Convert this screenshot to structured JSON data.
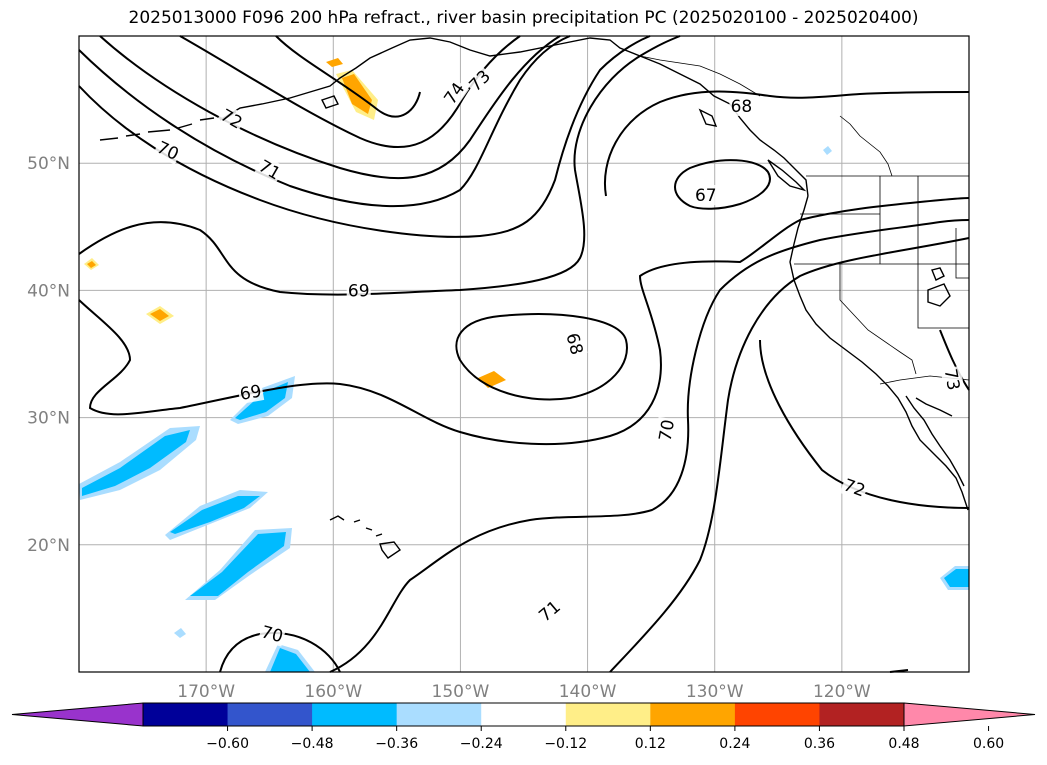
{
  "title": "2025013000 F096 200 hPa refract., river basin precipitation PC (2025020100 - 2025020400)",
  "map": {
    "projection": "plate-carree",
    "lon_range": [
      -180,
      -110
    ],
    "lat_range": [
      10,
      60
    ],
    "lat_ticks": [
      {
        "value": 20,
        "label": "20°N"
      },
      {
        "value": 30,
        "label": "30°N"
      },
      {
        "value": 40,
        "label": "40°N"
      },
      {
        "value": 50,
        "label": "50°N"
      }
    ],
    "lon_ticks": [
      {
        "value": -170,
        "label": "170°W"
      },
      {
        "value": -160,
        "label": "160°W"
      },
      {
        "value": -150,
        "label": "150°W"
      },
      {
        "value": -140,
        "label": "140°W"
      },
      {
        "value": -130,
        "label": "130°W"
      },
      {
        "value": -120,
        "label": "120°W"
      }
    ],
    "grid": true,
    "contour_labels": [
      {
        "text": "74",
        "lon": -150.5,
        "lat": 55.5,
        "angle": -55
      },
      {
        "text": "73",
        "lon": -148.5,
        "lat": 56.5,
        "angle": -45
      },
      {
        "text": "72",
        "lon": -168.0,
        "lat": 53.5,
        "angle": 30
      },
      {
        "text": "71",
        "lon": -165.0,
        "lat": 49.5,
        "angle": 30
      },
      {
        "text": "70",
        "lon": -173.0,
        "lat": 51.0,
        "angle": 25
      },
      {
        "text": "68",
        "lon": -127.9,
        "lat": 54.5,
        "angle": 0
      },
      {
        "text": "67",
        "lon": -130.7,
        "lat": 47.5,
        "angle": 0
      },
      {
        "text": "69",
        "lon": -158.0,
        "lat": 40.0,
        "angle": 0
      },
      {
        "text": "69",
        "lon": -166.5,
        "lat": 32.0,
        "angle": -10
      },
      {
        "text": "68",
        "lon": -141.0,
        "lat": 35.8,
        "angle": 75
      },
      {
        "text": "70",
        "lon": -133.8,
        "lat": 29.0,
        "angle": -80
      },
      {
        "text": "72",
        "lon": -119.0,
        "lat": 24.5,
        "angle": 20
      },
      {
        "text": "71",
        "lon": -143.0,
        "lat": 14.8,
        "angle": -40
      },
      {
        "text": "70",
        "lon": -164.8,
        "lat": 13.0,
        "angle": 15
      },
      {
        "text": "73",
        "lon": -111.3,
        "lat": 33.0,
        "angle": 80
      }
    ]
  },
  "colorbar": {
    "ticks": [
      "−0.60",
      "−0.48",
      "−0.36",
      "−0.24",
      "−0.12",
      "0.12",
      "0.24",
      "0.36",
      "0.48",
      "0.60"
    ],
    "colors": [
      "#9933cc",
      "#000099",
      "#3355cc",
      "#00bbff",
      "#aaddff",
      "#ffffff",
      "#ffee88",
      "#ffa500",
      "#ff4400",
      "#b22222",
      "#ff88aa"
    ],
    "extend": "both"
  },
  "colors": {
    "contour": "#000000",
    "grid": "#b0b0b0",
    "axis_label": "#808080"
  }
}
